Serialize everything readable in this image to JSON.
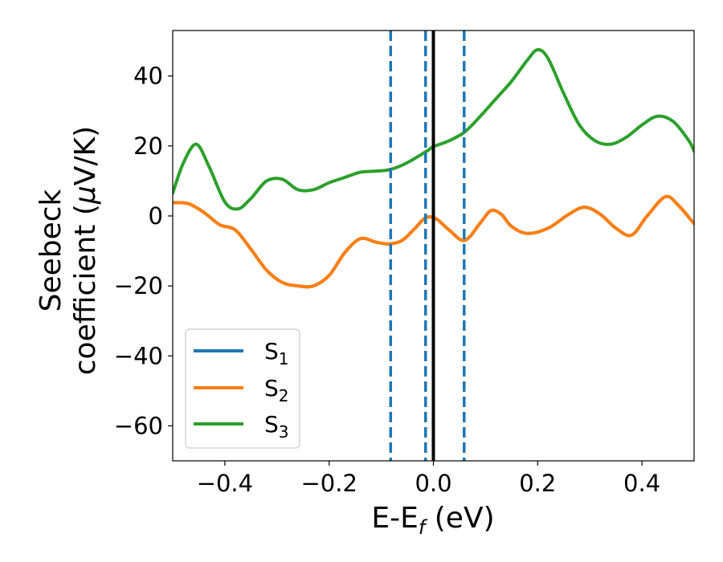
{
  "chart_data": {
    "type": "line",
    "xlabel": {
      "main": "E-E",
      "sub": "f",
      "tail": " (eV)"
    },
    "ylabel": {
      "line1": "Seebeck",
      "line2_pre": "coefficient  (",
      "line2_mu": "μ",
      "line2_post": "V/K)"
    },
    "xlim": [
      -0.5,
      0.5
    ],
    "ylim": [
      -70,
      53
    ],
    "xticks": [
      -0.4,
      -0.2,
      0.0,
      0.2,
      0.4
    ],
    "xtick_labels": [
      "−0.4",
      "−0.2",
      "0.0",
      "0.2",
      "0.4"
    ],
    "yticks": [
      -60,
      -40,
      -20,
      0,
      20,
      40
    ],
    "ytick_labels": [
      "−60",
      "−40",
      "−20",
      "0",
      "20",
      "40"
    ],
    "vlines": [
      {
        "x": -0.082,
        "style": "dashed",
        "color": "#1f77b4"
      },
      {
        "x": -0.015,
        "style": "dashed",
        "color": "#1f77b4"
      },
      {
        "x": 0.0,
        "style": "solid",
        "color": "#000000"
      },
      {
        "x": 0.059,
        "style": "dashed",
        "color": "#1f77b4"
      }
    ],
    "legend_position": "lower-left",
    "series": [
      {
        "name": "S",
        "sub": "1",
        "color": "#1f77b4",
        "x": [
          -0.5,
          -0.47,
          -0.44,
          -0.41,
          -0.38,
          -0.35,
          -0.32,
          -0.29,
          -0.26,
          -0.23,
          -0.2,
          -0.17,
          -0.14,
          -0.11,
          -0.085,
          -0.06,
          -0.035,
          -0.015,
          0.005,
          0.03,
          0.06,
          0.09,
          0.11,
          0.13,
          0.15,
          0.18,
          0.22,
          0.26,
          0.29,
          0.32,
          0.35,
          0.38,
          0.41,
          0.445,
          0.47,
          0.5
        ],
        "y": [
          3.8,
          3.5,
          1.0,
          -2.5,
          -4.0,
          -9.5,
          -15.5,
          -19.0,
          -20.0,
          -20.0,
          -17.0,
          -10.5,
          -6.5,
          -7.5,
          -8.0,
          -7.0,
          -3.5,
          -0.5,
          -0.8,
          -4.0,
          -7.0,
          -2.0,
          1.5,
          0.5,
          -3.0,
          -5.0,
          -3.5,
          0.5,
          2.5,
          0.5,
          -3.5,
          -5.5,
          0.0,
          5.5,
          3.0,
          -2.2
        ]
      },
      {
        "name": "S",
        "sub": "2",
        "color": "#ff7f0e",
        "x": [
          -0.5,
          -0.47,
          -0.44,
          -0.41,
          -0.38,
          -0.35,
          -0.32,
          -0.29,
          -0.26,
          -0.23,
          -0.2,
          -0.17,
          -0.14,
          -0.11,
          -0.085,
          -0.06,
          -0.035,
          -0.015,
          0.005,
          0.03,
          0.06,
          0.09,
          0.11,
          0.13,
          0.15,
          0.18,
          0.22,
          0.26,
          0.29,
          0.32,
          0.35,
          0.38,
          0.41,
          0.445,
          0.47,
          0.5
        ],
        "y": [
          3.8,
          3.5,
          1.0,
          -2.5,
          -4.0,
          -9.5,
          -15.5,
          -19.0,
          -20.0,
          -20.0,
          -17.0,
          -10.5,
          -6.5,
          -7.5,
          -8.0,
          -7.0,
          -3.5,
          -0.5,
          -0.8,
          -4.0,
          -7.0,
          -2.0,
          1.5,
          0.5,
          -3.0,
          -5.0,
          -3.5,
          0.5,
          2.5,
          0.5,
          -3.5,
          -5.5,
          0.0,
          5.5,
          3.0,
          -2.2
        ]
      },
      {
        "name": "S",
        "sub": "3",
        "color": "#2ca02c",
        "x": [
          -0.5,
          -0.48,
          -0.455,
          -0.43,
          -0.4,
          -0.375,
          -0.35,
          -0.32,
          -0.29,
          -0.26,
          -0.23,
          -0.2,
          -0.17,
          -0.14,
          -0.11,
          -0.085,
          -0.06,
          -0.035,
          -0.01,
          0.0,
          0.03,
          0.06,
          0.09,
          0.12,
          0.15,
          0.18,
          0.2,
          0.22,
          0.25,
          0.28,
          0.31,
          0.34,
          0.37,
          0.4,
          0.43,
          0.46,
          0.49,
          0.5
        ],
        "y": [
          6.5,
          15.0,
          20.5,
          14.0,
          4.0,
          2.0,
          5.0,
          10.0,
          10.5,
          7.5,
          7.5,
          9.5,
          11.0,
          12.5,
          12.8,
          13.2,
          14.5,
          16.5,
          18.8,
          19.8,
          21.5,
          24.0,
          28.5,
          33.5,
          38.5,
          44.5,
          47.5,
          45.0,
          35.0,
          26.0,
          21.5,
          20.5,
          22.5,
          26.0,
          28.5,
          27.0,
          21.5,
          18.5
        ]
      }
    ]
  }
}
